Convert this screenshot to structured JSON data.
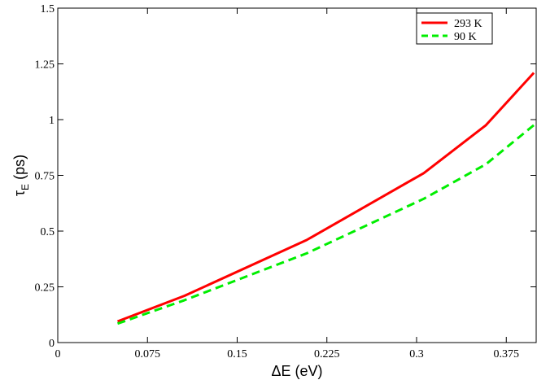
{
  "chart_data": {
    "type": "line",
    "xlabel": "ΔE (eV)",
    "ylabel_main": "τ",
    "ylabel_sub": "E",
    "ylabel_unit": " (ps)",
    "xlim": [
      0,
      0.4
    ],
    "ylim": [
      0,
      1.5
    ],
    "xticks": [
      0,
      0.075,
      0.15,
      0.225,
      0.3,
      0.375
    ],
    "xtick_labels": [
      "0",
      "0.075",
      "0.15",
      "0.225",
      "0.3",
      "0.375"
    ],
    "yticks": [
      0,
      0.25,
      0.5,
      0.75,
      1,
      1.25,
      1.5
    ],
    "ytick_labels": [
      "0",
      "0.25",
      "0.5",
      "0.75",
      "1",
      "1.25",
      "1.5"
    ],
    "grid": false,
    "legend_position": "top-right",
    "series": [
      {
        "name": "293 K",
        "color": "#ff0000",
        "dash": "solid",
        "x": [
          0.05,
          0.106,
          0.208,
          0.306,
          0.358,
          0.398
        ],
        "y": [
          0.095,
          0.21,
          0.46,
          0.76,
          0.975,
          1.21
        ]
      },
      {
        "name": "90 K",
        "color": "#00ee00",
        "dash": "dashed",
        "x": [
          0.05,
          0.106,
          0.208,
          0.306,
          0.358,
          0.398
        ],
        "y": [
          0.085,
          0.19,
          0.4,
          0.645,
          0.8,
          0.975
        ]
      }
    ]
  }
}
